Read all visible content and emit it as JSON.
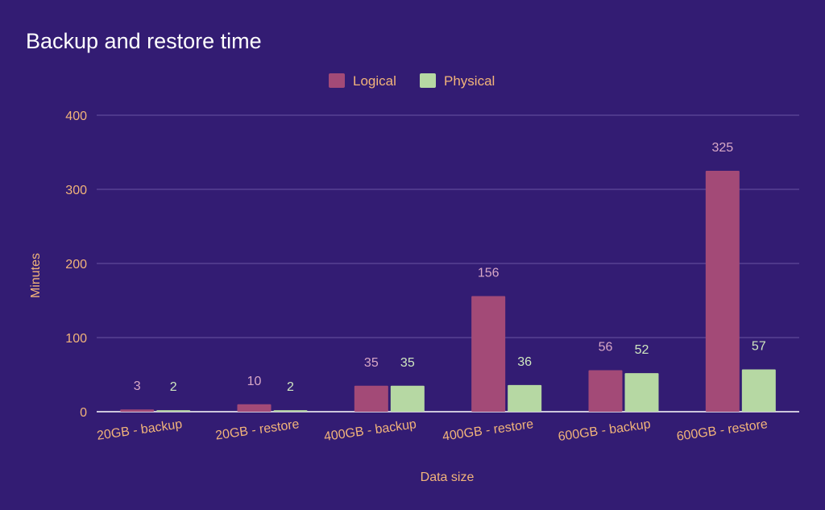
{
  "chart_data": {
    "type": "bar",
    "title": "Backup and restore time",
    "xlabel": "Data size",
    "ylabel": "Minutes",
    "ylim": [
      0,
      400
    ],
    "yticks": [
      0,
      100,
      200,
      300,
      400
    ],
    "grid": true,
    "legend_position": "top-center",
    "categories": [
      "20GB - backup",
      "20GB - restore",
      "400GB - backup",
      "400GB - restore",
      "600GB - backup",
      "600GB - restore"
    ],
    "series": [
      {
        "name": "Logical",
        "color": "#a34a77",
        "values": [
          3,
          10,
          35,
          156,
          56,
          325
        ]
      },
      {
        "name": "Physical",
        "color": "#b6d8a3",
        "values": [
          2,
          2,
          35,
          36,
          52,
          57
        ]
      }
    ]
  },
  "colors": {
    "background": "#331c73",
    "gridline": "#6a55a3",
    "baseline": "#ffffff",
    "axis_text": "#f2b47a",
    "title_text": "#ffffff"
  }
}
